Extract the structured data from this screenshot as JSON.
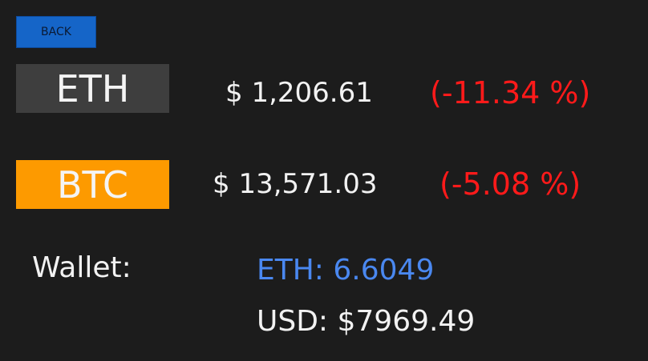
{
  "header": {
    "back_label": "BACK"
  },
  "coins": {
    "eth": {
      "symbol": "ETH",
      "price": "$ 1,206.61",
      "change": "(-11.34 %)"
    },
    "btc": {
      "symbol": "BTC",
      "price": "$ 13,571.03",
      "change": "(-5.08 %)"
    }
  },
  "wallet": {
    "label": "Wallet:",
    "eth_balance": "ETH: 6.6049",
    "usd_balance": "USD: $7969.49"
  },
  "colors": {
    "background": "#1c1c1c",
    "back_button": "#1565c8",
    "eth_badge": "#3e3e3e",
    "btc_badge": "#fd9a00",
    "negative_change": "#ff1a1a",
    "wallet_eth": "#4a88f0"
  }
}
